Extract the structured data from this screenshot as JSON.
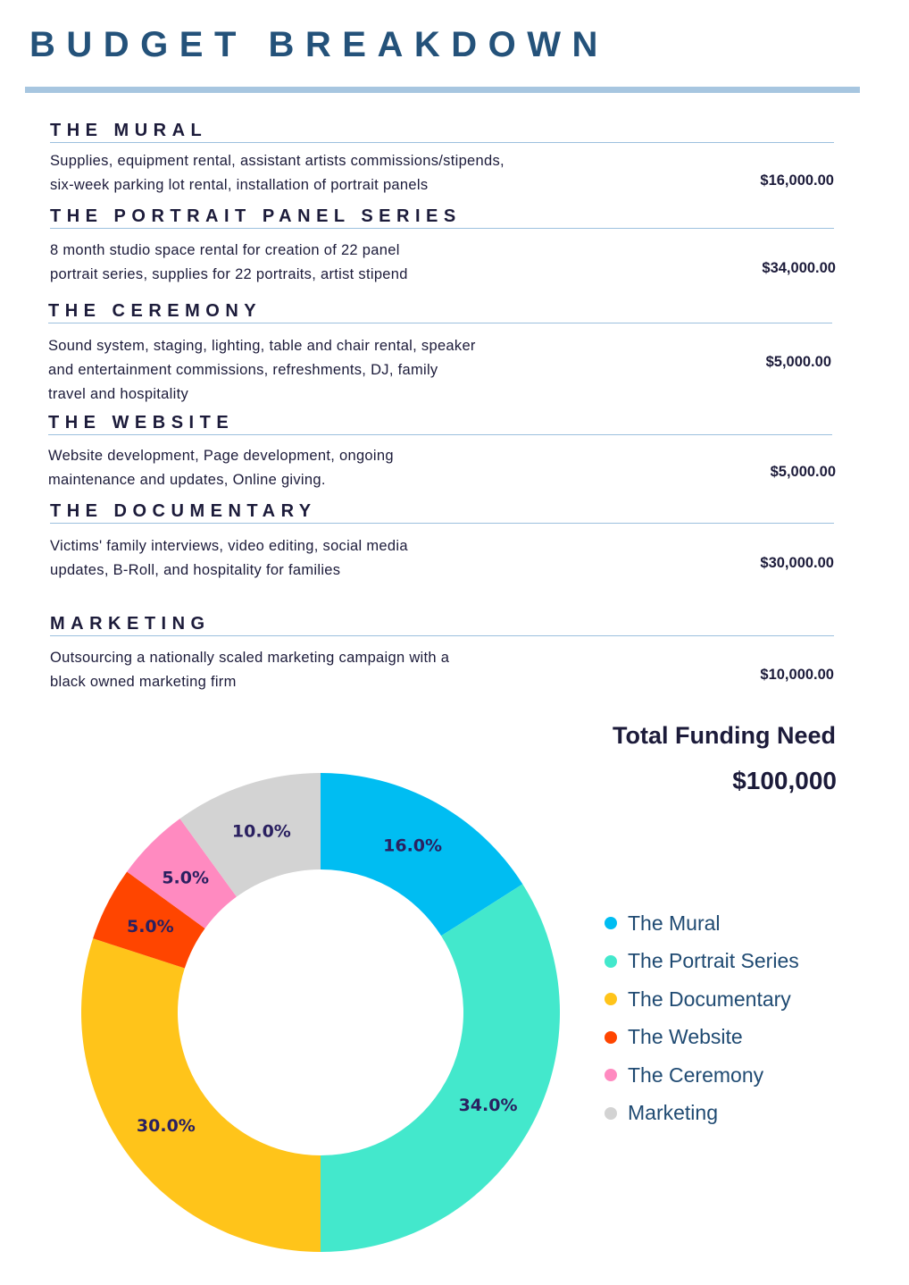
{
  "title": "BUDGET BREAKDOWN",
  "sections": [
    {
      "heading": "THE MURAL",
      "description": [
        "Supplies, equipment rental, assistant artists commissions/stipends,",
        "six-week parking lot rental, installation of portrait panels"
      ],
      "amount": "$16,000.00"
    },
    {
      "heading": "THE PORTRAIT PANEL SERIES",
      "description": [
        "8 month studio space rental for creation of 22 panel",
        "portrait series, supplies for 22 portraits, artist stipend"
      ],
      "amount": "$34,000.00"
    },
    {
      "heading": "THE CEREMONY",
      "description": [
        "Sound system, staging, lighting, table and chair rental, speaker",
        "and entertainment commissions, refreshments, DJ, family",
        "travel and hospitality"
      ],
      "amount": "$5,000.00"
    },
    {
      "heading": "THE WEBSITE",
      "description": [
        "Website development, Page development, ongoing",
        "maintenance and updates, Online giving."
      ],
      "amount": "$5,000.00"
    },
    {
      "heading": "THE DOCUMENTARY",
      "description": [
        "Victims' family interviews, video editing, social media",
        "updates, B-Roll, and hospitality for families"
      ],
      "amount": "$30,000.00"
    },
    {
      "heading": "MARKETING",
      "description": [
        "Outsourcing a nationally scaled marketing campaign with a",
        "black owned marketing firm"
      ],
      "amount": "$10,000.00"
    }
  ],
  "total": {
    "label": "Total Funding Need",
    "value": "$100,000"
  },
  "chart_data": {
    "type": "pie",
    "donut": true,
    "slices": [
      {
        "name": "The Mural",
        "value": 16.0,
        "label": "16.0%",
        "color": "#00bdf2"
      },
      {
        "name": "The Portrait Series",
        "value": 34.0,
        "label": "34.0%",
        "color": "#43e8cc"
      },
      {
        "name": "The Documentary",
        "value": 30.0,
        "label": "30.0%",
        "color": "#ffc41a"
      },
      {
        "name": "The Website",
        "value": 5.0,
        "label": "5.0%",
        "color": "#ff4500"
      },
      {
        "name": "The Ceremony",
        "value": 5.0,
        "label": "5.0%",
        "color": "#ff8ac0"
      },
      {
        "name": "Marketing",
        "value": 10.0,
        "label": "10.0%",
        "color": "#d3d3d3"
      }
    ],
    "legend_position": "right",
    "label_color": "#2a2060"
  }
}
